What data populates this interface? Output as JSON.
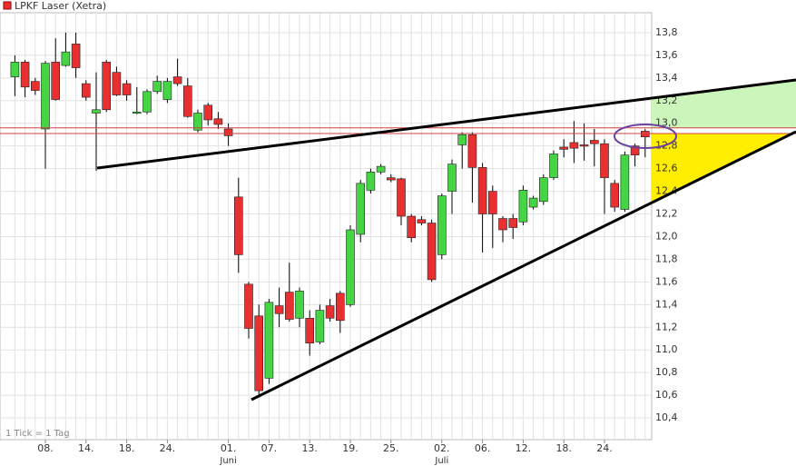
{
  "chart_data": {
    "type": "candlestick",
    "title": "LPKF Laser (Xetra)",
    "footnote": "1 Tick = 1 Tag",
    "categories": [
      null,
      null,
      null,
      "08.",
      null,
      null,
      null,
      "14.",
      null,
      null,
      null,
      "18.",
      null,
      null,
      null,
      "24.",
      null,
      null,
      null,
      null,
      null,
      "01.",
      null,
      null,
      null,
      "07.",
      null,
      null,
      null,
      "13.",
      null,
      null,
      null,
      "19.",
      null,
      null,
      null,
      "25.",
      null,
      null,
      null,
      null,
      "02.",
      null,
      null,
      null,
      "06.",
      null,
      null,
      null,
      "12.",
      null,
      null,
      null,
      "18.",
      null,
      null,
      null,
      "24.",
      null,
      null,
      null,
      null
    ],
    "month_labels": [
      null,
      null,
      null,
      null,
      null,
      null,
      null,
      null,
      null,
      null,
      null,
      null,
      null,
      null,
      null,
      null,
      null,
      null,
      null,
      null,
      null,
      "Juni",
      null,
      null,
      null,
      null,
      null,
      null,
      null,
      null,
      null,
      null,
      null,
      null,
      null,
      null,
      null,
      null,
      null,
      null,
      null,
      null,
      "Juli",
      null,
      null,
      null,
      null,
      null,
      null,
      null,
      null,
      null,
      null,
      null,
      null,
      null,
      null,
      null,
      null,
      null,
      null,
      null,
      null
    ],
    "open": [
      13.41,
      13.54,
      13.37,
      12.95,
      13.54,
      13.51,
      13.7,
      13.35,
      13.09,
      13.54,
      13.45,
      13.35,
      13.09,
      13.1,
      13.28,
      13.21,
      13.41,
      13.33,
      12.94,
      13.16,
      13.04,
      12.95,
      12.35,
      11.58,
      11.3,
      10.75,
      11.39,
      11.51,
      11.28,
      11.28,
      11.07,
      11.39,
      11.5,
      11.4,
      12.02,
      12.41,
      12.57,
      12.52,
      12.51,
      12.18,
      12.15,
      12.12,
      11.84,
      12.4,
      12.81,
      12.9,
      12.61,
      12.4,
      12.16,
      12.16,
      12.13,
      12.26,
      12.31,
      12.52,
      12.79,
      12.83,
      12.81,
      12.85,
      12.82,
      12.47,
      12.24,
      12.8,
      12.93
    ],
    "high": [
      13.6,
      13.56,
      13.4,
      13.55,
      13.75,
      13.8,
      13.8,
      13.38,
      13.45,
      13.56,
      13.5,
      13.38,
      13.32,
      13.3,
      13.42,
      13.4,
      13.57,
      13.4,
      13.12,
      13.18,
      13.1,
      13.0,
      12.52,
      11.6,
      11.4,
      11.45,
      11.55,
      11.77,
      11.55,
      11.35,
      11.4,
      11.45,
      11.52,
      12.1,
      12.5,
      12.6,
      12.64,
      12.55,
      12.52,
      12.2,
      12.18,
      12.15,
      12.38,
      12.68,
      12.92,
      12.92,
      12.65,
      12.45,
      12.18,
      12.2,
      12.45,
      12.36,
      12.55,
      12.76,
      12.86,
      13.02,
      13.0,
      12.95,
      12.86,
      12.5,
      12.75,
      12.82,
      12.95
    ],
    "low": [
      13.24,
      13.23,
      13.25,
      12.6,
      13.2,
      13.5,
      13.4,
      13.2,
      12.58,
      13.1,
      13.24,
      13.2,
      13.08,
      13.08,
      13.26,
      13.18,
      13.33,
      13.05,
      12.92,
      12.98,
      12.95,
      12.8,
      11.68,
      11.1,
      10.58,
      10.7,
      11.2,
      11.25,
      11.2,
      10.95,
      11.05,
      11.25,
      11.15,
      11.38,
      11.95,
      12.38,
      12.55,
      12.48,
      12.1,
      11.95,
      12.1,
      11.6,
      11.8,
      12.2,
      12.6,
      12.3,
      11.86,
      11.9,
      11.95,
      11.98,
      12.1,
      12.24,
      12.28,
      12.5,
      12.7,
      12.65,
      12.67,
      12.62,
      12.2,
      12.22,
      12.22,
      12.62,
      12.7
    ],
    "close": [
      13.54,
      13.32,
      13.29,
      13.53,
      13.21,
      13.63,
      13.49,
      13.23,
      13.12,
      13.12,
      13.25,
      13.25,
      13.1,
      13.28,
      13.37,
      13.37,
      13.35,
      13.06,
      13.09,
      13.03,
      12.99,
      12.89,
      11.84,
      11.19,
      10.64,
      11.42,
      11.32,
      11.27,
      11.52,
      11.06,
      11.35,
      11.28,
      11.26,
      12.06,
      12.47,
      12.57,
      12.62,
      12.5,
      12.18,
      11.99,
      12.12,
      11.62,
      12.36,
      12.64,
      12.9,
      12.61,
      12.2,
      12.2,
      12.06,
      12.08,
      12.41,
      12.34,
      12.52,
      12.73,
      12.77,
      12.78,
      12.8,
      12.82,
      12.52,
      12.26,
      12.72,
      12.72,
      12.88
    ],
    "up_color": "#44d444",
    "down_color": "#e83030",
    "horizontal_lines": [
      12.96,
      12.91
    ],
    "horizontal_line_color": "#d04040",
    "ylim": [
      10.2,
      14.0
    ],
    "yticks": [
      {
        "value": 10.4,
        "label": "10,4"
      },
      {
        "value": 10.6,
        "label": "10,6"
      },
      {
        "value": 10.8,
        "label": "10,8"
      },
      {
        "value": 11.0,
        "label": "11,0"
      },
      {
        "value": 11.2,
        "label": "11,2"
      },
      {
        "value": 11.4,
        "label": "11,4"
      },
      {
        "value": 11.6,
        "label": "11,6"
      },
      {
        "value": 11.8,
        "label": "11,8"
      },
      {
        "value": 12.0,
        "label": "12,0"
      },
      {
        "value": 12.2,
        "label": "12,2"
      },
      {
        "value": 12.4,
        "label": "12,4"
      },
      {
        "value": 12.6,
        "label": "12,6"
      },
      {
        "value": 12.8,
        "label": "12,8"
      },
      {
        "value": 13.0,
        "label": "13,0"
      },
      {
        "value": 13.2,
        "label": "13,2"
      },
      {
        "value": 13.4,
        "label": "13,4"
      },
      {
        "value": 13.6,
        "label": "13,6"
      },
      {
        "value": 13.8,
        "label": "13,8"
      }
    ],
    "grid": true
  }
}
